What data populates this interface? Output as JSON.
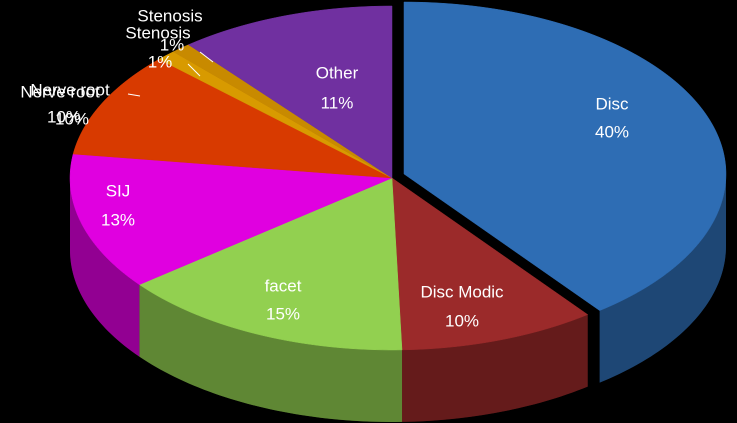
{
  "chart_data": {
    "type": "pie",
    "categories": [
      "Disc",
      "Disc Modic",
      "facet",
      "SIJ",
      "Nerve root",
      "Stenosis",
      "Stenosis",
      "Other"
    ],
    "values": [
      40,
      10,
      15,
      13,
      10,
      1,
      1,
      11
    ],
    "value_labels": [
      "40%",
      "10%",
      "15%",
      "13%",
      "10%",
      "1%",
      "1%",
      "11%"
    ],
    "colors": [
      "#2e6db4",
      "#9b2a2a",
      "#92d050",
      "#e000e0",
      "#d83a00",
      "#d89a00",
      "#c88a00",
      "#7030a0"
    ]
  }
}
